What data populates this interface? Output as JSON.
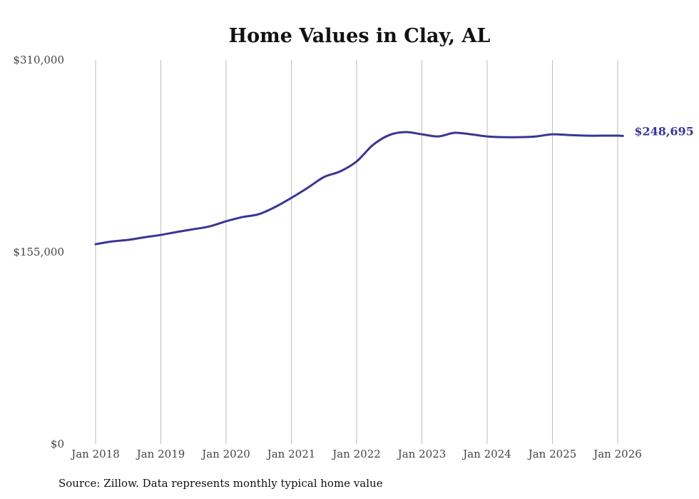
{
  "chart_data": {
    "type": "line",
    "title": "Home Values in Clay, AL",
    "xlabel": "",
    "ylabel": "",
    "ylim": [
      0,
      310000
    ],
    "xlim": [
      2018,
      2026.1
    ],
    "y_ticks": [
      {
        "value": 0,
        "label": "$0"
      },
      {
        "value": 155000,
        "label": "$155,000"
      },
      {
        "value": 310000,
        "label": "$310,000"
      }
    ],
    "x_ticks": [
      {
        "value": 2018,
        "label": "Jan 2018"
      },
      {
        "value": 2019,
        "label": "Jan 2019"
      },
      {
        "value": 2020,
        "label": "Jan 2020"
      },
      {
        "value": 2021,
        "label": "Jan 2021"
      },
      {
        "value": 2022,
        "label": "Jan 2022"
      },
      {
        "value": 2023,
        "label": "Jan 2023"
      },
      {
        "value": 2024,
        "label": "Jan 2024"
      },
      {
        "value": 2025,
        "label": "Jan 2025"
      },
      {
        "value": 2026,
        "label": "Jan 2026"
      }
    ],
    "grid": "vertical",
    "series": [
      {
        "name": "Typical home value",
        "color": "#3b3594",
        "x": [
          2018,
          2018.25,
          2018.5,
          2018.75,
          2019,
          2019.25,
          2019.5,
          2019.75,
          2020,
          2020.25,
          2020.5,
          2020.75,
          2021,
          2021.25,
          2021.5,
          2021.75,
          2022,
          2022.25,
          2022.5,
          2022.75,
          2023,
          2023.25,
          2023.5,
          2023.75,
          2024,
          2024.25,
          2024.5,
          2024.75,
          2025,
          2025.25,
          2025.5,
          2025.75,
          2026,
          2026.08
        ],
        "values": [
          161300,
          163500,
          164800,
          166900,
          168800,
          171200,
          173400,
          175700,
          179800,
          183200,
          185500,
          191300,
          198700,
          206800,
          215500,
          220100,
          228100,
          241400,
          249400,
          251800,
          250000,
          248300,
          251200,
          250000,
          248300,
          247700,
          247700,
          248300,
          250000,
          249400,
          248900,
          248900,
          248900,
          248695
        ]
      }
    ],
    "end_label": "$248,695",
    "source": "Source: Zillow. Data represents monthly typical home value"
  }
}
